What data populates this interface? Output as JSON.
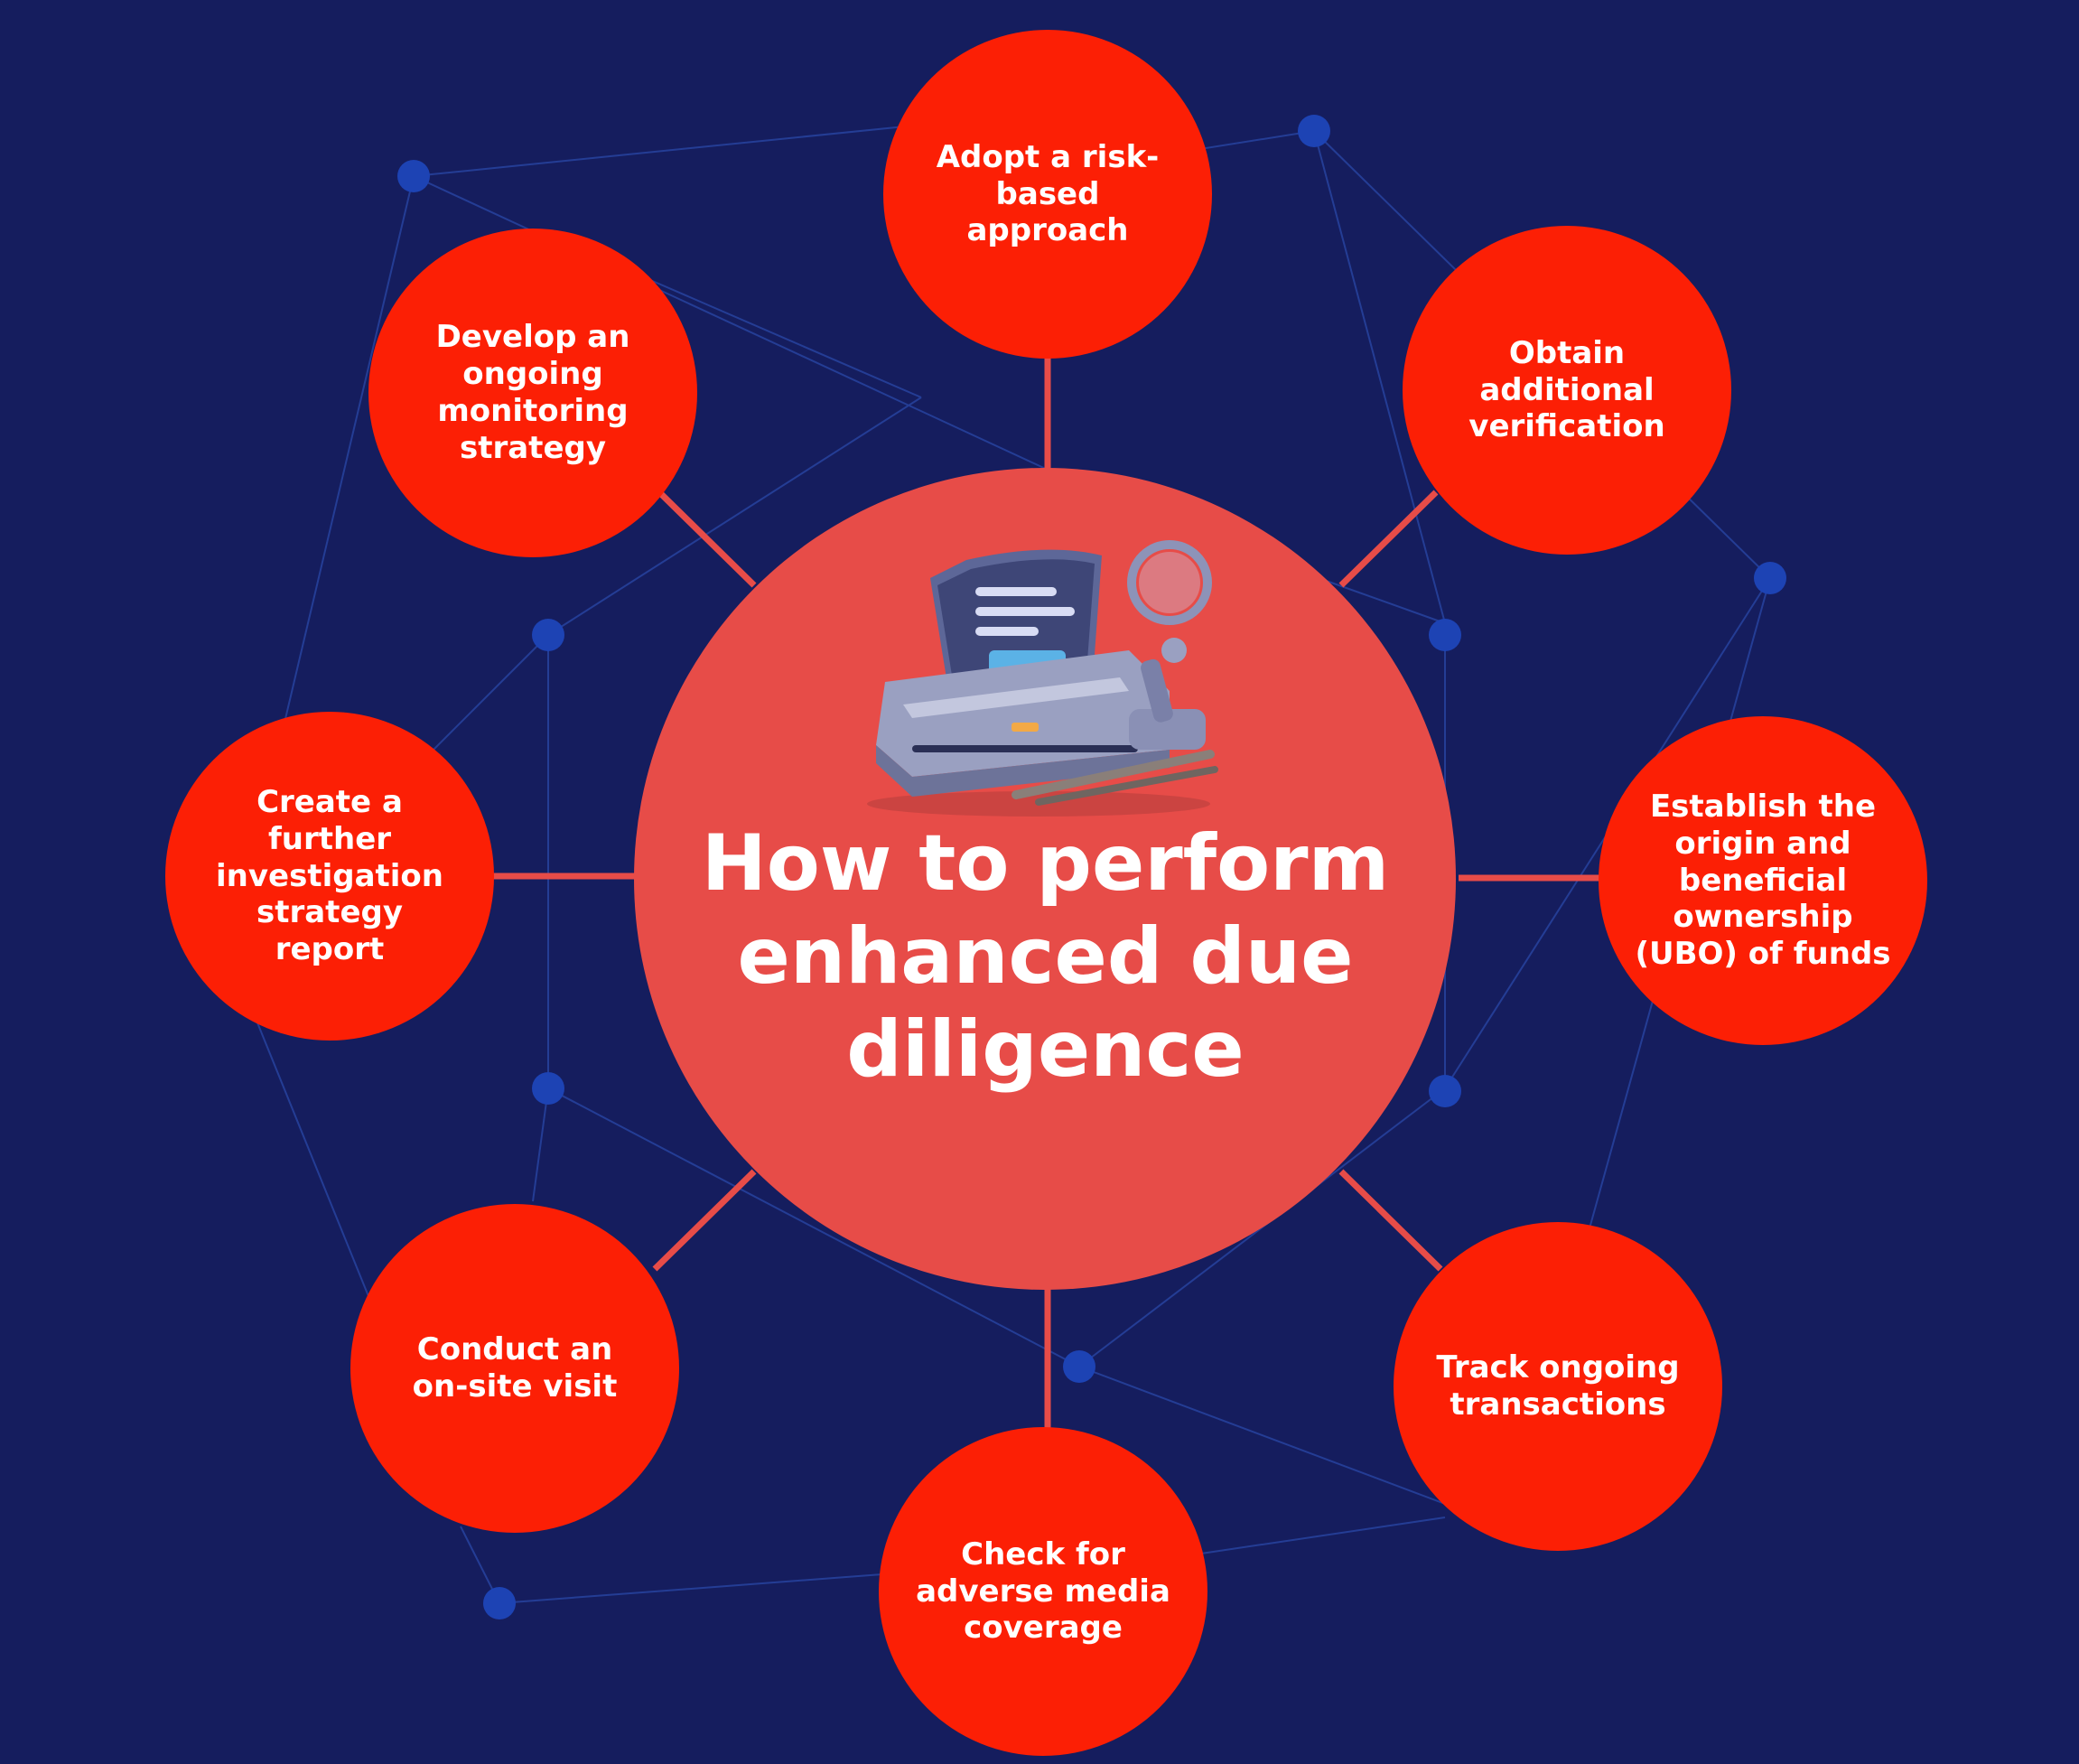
{
  "center": {
    "title": "How to perform enhanced due diligence"
  },
  "steps": [
    {
      "id": "risk-based",
      "label": "Adopt a risk-based approach"
    },
    {
      "id": "verification",
      "label": "Obtain additional verification"
    },
    {
      "id": "ubo",
      "label": "Establish the origin and beneficial ownership (UBO) of funds"
    },
    {
      "id": "transactions",
      "label": "Track ongoing transactions"
    },
    {
      "id": "media",
      "label": "Check for adverse media coverage"
    },
    {
      "id": "onsite",
      "label": "Conduct an on-site visit"
    },
    {
      "id": "report",
      "label": "Create a further investigation strategy report"
    },
    {
      "id": "monitoring",
      "label": "Develop an ongoing monitoring strategy"
    }
  ],
  "colors": {
    "background": "#151d5e",
    "center_fill": "#e74c48",
    "node_fill": "#fc1f05",
    "connector": "#e74c48",
    "network_dot": "#1d43b4",
    "network_line": "#2a48a8"
  },
  "icon": "document-printer-with-magnifier-icon"
}
